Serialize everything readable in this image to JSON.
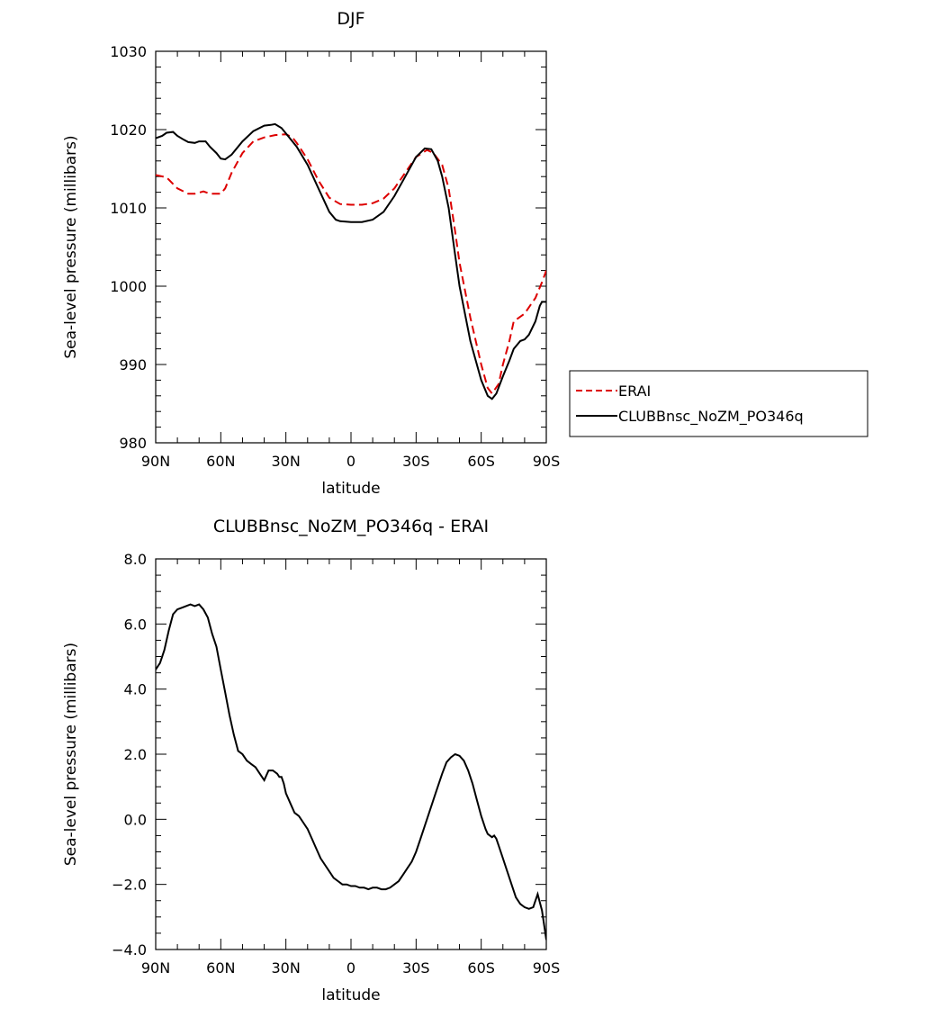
{
  "chart_data": [
    {
      "type": "line",
      "title": "DJF",
      "xlabel": "latitude",
      "ylabel": "Sea-level pressure (millibars)",
      "xlim": [
        90,
        -90
      ],
      "ylim": [
        980,
        1030
      ],
      "xticks": [
        90,
        60,
        30,
        0,
        -30,
        -60,
        -90
      ],
      "xtick_labels": [
        "90N",
        "60N",
        "30N",
        "0",
        "30S",
        "60S",
        "90S"
      ],
      "yticks": [
        980,
        990,
        1000,
        1010,
        1020,
        1030
      ],
      "ytick_labels": [
        "980",
        "990",
        "1000",
        "1010",
        "1020",
        "1030"
      ],
      "legend_position": "right",
      "series": [
        {
          "name": "ERAI",
          "color": "#dd0000",
          "dashed": true,
          "x": [
            90,
            85,
            80,
            75,
            72,
            68,
            65,
            60,
            58,
            55,
            50,
            45,
            40,
            35,
            30,
            27,
            25,
            20,
            15,
            10,
            5,
            0,
            -5,
            -10,
            -15,
            -20,
            -25,
            -30,
            -35,
            -38,
            -42,
            -45,
            -48,
            -50,
            -55,
            -60,
            -63,
            -65,
            -68,
            -70,
            -73,
            -75,
            -80,
            -85,
            -88,
            -90
          ],
          "y": [
            1014.2,
            1013.9,
            1012.5,
            1011.8,
            1011.8,
            1012.1,
            1011.8,
            1011.8,
            1012.5,
            1014.5,
            1017.0,
            1018.5,
            1019.0,
            1019.3,
            1019.4,
            1019.0,
            1018.3,
            1016.2,
            1013.5,
            1011.3,
            1010.5,
            1010.4,
            1010.4,
            1010.6,
            1011.2,
            1012.5,
            1014.5,
            1016.5,
            1017.4,
            1017.0,
            1015.5,
            1012.5,
            1007.0,
            1003.0,
            996.0,
            990.0,
            987.0,
            986.3,
            987.5,
            990.0,
            993.0,
            995.5,
            996.5,
            998.5,
            1000.5,
            1002.0
          ]
        },
        {
          "name": "CLUBBnsc_NoZM_PO346q",
          "color": "#000000",
          "dashed": false,
          "x": [
            90,
            87,
            85,
            82,
            80,
            77,
            75,
            72,
            70,
            67,
            65,
            62,
            60,
            58,
            55,
            50,
            45,
            40,
            37,
            35,
            32,
            30,
            27,
            25,
            20,
            15,
            10,
            7,
            5,
            0,
            -5,
            -10,
            -15,
            -20,
            -25,
            -30,
            -34,
            -37,
            -40,
            -42,
            -45,
            -48,
            -50,
            -55,
            -60,
            -63,
            -65,
            -67,
            -70,
            -73,
            -75,
            -78,
            -80,
            -82,
            -85,
            -87,
            -88,
            -90
          ],
          "y": [
            1018.9,
            1019.2,
            1019.6,
            1019.7,
            1019.2,
            1018.7,
            1018.4,
            1018.3,
            1018.5,
            1018.5,
            1017.8,
            1017.0,
            1016.3,
            1016.2,
            1016.8,
            1018.5,
            1019.8,
            1020.5,
            1020.6,
            1020.7,
            1020.2,
            1019.5,
            1018.5,
            1017.8,
            1015.5,
            1012.5,
            1009.5,
            1008.5,
            1008.3,
            1008.2,
            1008.2,
            1008.5,
            1009.5,
            1011.5,
            1014.0,
            1016.5,
            1017.6,
            1017.5,
            1016.0,
            1014.0,
            1010.0,
            1004.0,
            1000.0,
            993.0,
            988.0,
            986.0,
            985.6,
            986.3,
            988.5,
            990.5,
            992.0,
            993.0,
            993.2,
            993.8,
            995.5,
            997.5,
            998.0,
            998.0
          ]
        }
      ]
    },
    {
      "type": "line",
      "title": "CLUBBnsc_NoZM_PO346q - ERAI",
      "xlabel": "latitude",
      "ylabel": "Sea-level pressure (millibars)",
      "xlim": [
        90,
        -90
      ],
      "ylim": [
        -4.0,
        8.0
      ],
      "xticks": [
        90,
        60,
        30,
        0,
        -30,
        -60,
        -90
      ],
      "xtick_labels": [
        "90N",
        "60N",
        "30N",
        "0",
        "30S",
        "60S",
        "90S"
      ],
      "yticks": [
        -4.0,
        -2.0,
        0.0,
        2.0,
        4.0,
        6.0,
        8.0
      ],
      "ytick_labels": [
        "-4.0",
        "-2.0",
        "0.0",
        "2.0",
        "4.0",
        "6.0",
        "8.0"
      ],
      "series": [
        {
          "color": "#000000",
          "dashed": false,
          "x": [
            90,
            88,
            86,
            84,
            82,
            80,
            78,
            76,
            74,
            72,
            70,
            68,
            66,
            64,
            62,
            60,
            58,
            56,
            54,
            52,
            50,
            48,
            46,
            44,
            42,
            40,
            38,
            36,
            34,
            33,
            32,
            31,
            30,
            28,
            26,
            24,
            22,
            20,
            18,
            16,
            14,
            12,
            10,
            8,
            6,
            4,
            2,
            0,
            -2,
            -4,
            -6,
            -8,
            -10,
            -12,
            -14,
            -16,
            -18,
            -20,
            -22,
            -24,
            -26,
            -28,
            -30,
            -32,
            -34,
            -36,
            -38,
            -40,
            -42,
            -44,
            -46,
            -48,
            -50,
            -52,
            -54,
            -56,
            -58,
            -60,
            -62,
            -63,
            -64,
            -65,
            -66,
            -67,
            -68,
            -70,
            -72,
            -74,
            -76,
            -78,
            -80,
            -82,
            -84,
            -85,
            -86,
            -88,
            -90
          ],
          "y": [
            4.6,
            4.8,
            5.2,
            5.8,
            6.3,
            6.45,
            6.5,
            6.55,
            6.6,
            6.55,
            6.6,
            6.45,
            6.2,
            5.7,
            5.3,
            4.6,
            3.9,
            3.2,
            2.6,
            2.1,
            2.0,
            1.8,
            1.7,
            1.6,
            1.4,
            1.2,
            1.5,
            1.5,
            1.4,
            1.3,
            1.3,
            1.1,
            0.8,
            0.5,
            0.2,
            0.1,
            -0.1,
            -0.3,
            -0.6,
            -0.9,
            -1.2,
            -1.4,
            -1.6,
            -1.8,
            -1.9,
            -2.0,
            -2.0,
            -2.05,
            -2.05,
            -2.1,
            -2.1,
            -2.15,
            -2.1,
            -2.1,
            -2.15,
            -2.15,
            -2.1,
            -2.0,
            -1.9,
            -1.7,
            -1.5,
            -1.3,
            -1.0,
            -0.6,
            -0.2,
            0.2,
            0.6,
            1.0,
            1.4,
            1.75,
            1.9,
            2.0,
            1.95,
            1.8,
            1.5,
            1.1,
            0.6,
            0.1,
            -0.3,
            -0.45,
            -0.5,
            -0.55,
            -0.5,
            -0.6,
            -0.8,
            -1.2,
            -1.6,
            -2.0,
            -2.4,
            -2.6,
            -2.7,
            -2.75,
            -2.7,
            -2.5,
            -2.3,
            -2.8,
            -3.7
          ]
        }
      ]
    }
  ]
}
